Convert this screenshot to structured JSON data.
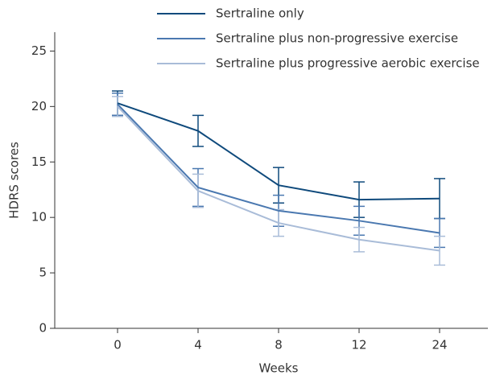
{
  "chart_data": {
    "type": "line",
    "x_label": "Weeks",
    "y_label": "HDRS scores",
    "categories": [
      "0",
      "4",
      "8",
      "12",
      "24"
    ],
    "series": [
      {
        "name": "Sertraline only",
        "color": "#0f4a7c",
        "values": [
          20.3,
          17.8,
          12.9,
          11.6,
          11.7
        ],
        "errors": [
          1.1,
          1.4,
          1.6,
          1.6,
          1.8
        ]
      },
      {
        "name": "Sertraline plus non-progressive exercise",
        "color": "#4a78b0",
        "values": [
          20.2,
          12.7,
          10.6,
          9.7,
          8.6
        ],
        "errors": [
          1.0,
          1.7,
          1.4,
          1.3,
          1.3
        ]
      },
      {
        "name": "Sertraline plus progressive aerobic exercise",
        "color": "#a9bcd8",
        "values": [
          20.0,
          12.4,
          9.5,
          8.0,
          7.0
        ],
        "errors": [
          0.9,
          1.5,
          1.2,
          1.1,
          1.3
        ]
      }
    ],
    "ylim": [
      0,
      26.7
    ],
    "yticks": [
      0,
      5,
      10,
      15,
      20,
      25
    ],
    "grid": false,
    "legend": "top"
  }
}
